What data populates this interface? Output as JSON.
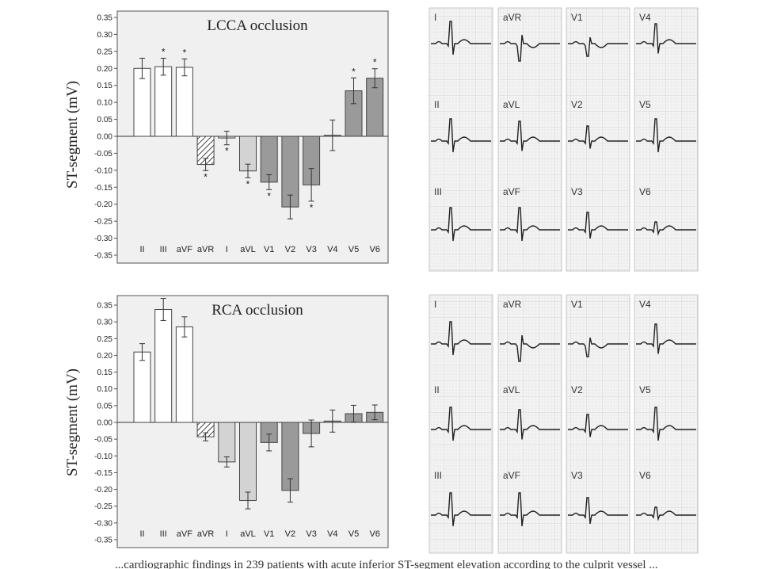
{
  "chart_data": [
    {
      "type": "bar",
      "title": "LCCA occlusion",
      "ylabel": "ST-segment (mV)",
      "xlabel": "",
      "ylim": [
        -0.35,
        0.35
      ],
      "yticks": [
        "0.35",
        "0.30",
        "0.25",
        "0.20",
        "0.15",
        "0.10",
        "0.05",
        "0.00",
        "-0.05",
        "-0.10",
        "-0.15",
        "-0.20",
        "-0.25",
        "-0.30",
        "-0.35"
      ],
      "categories": [
        "II",
        "III",
        "aVF",
        "aVR",
        "I",
        "aVL",
        "V1",
        "V2",
        "V3",
        "V4",
        "V5",
        "V6"
      ],
      "values": [
        0.2,
        0.205,
        0.203,
        -0.083,
        -0.005,
        -0.102,
        -0.135,
        -0.208,
        -0.143,
        0.003,
        0.134,
        0.171
      ],
      "errors": [
        0.03,
        0.025,
        0.025,
        0.018,
        0.02,
        0.02,
        0.022,
        0.035,
        0.048,
        0.045,
        0.038,
        0.028
      ],
      "significant": [
        false,
        true,
        true,
        true,
        true,
        true,
        true,
        false,
        true,
        false,
        true,
        true
      ],
      "styles": [
        "white",
        "white",
        "white",
        "hatched",
        "light",
        "light",
        "dark",
        "dark",
        "dark",
        "dark",
        "dark",
        "dark"
      ],
      "grid": false
    },
    {
      "type": "bar",
      "title": "RCA occlusion",
      "ylabel": "ST-segment (mV)",
      "xlabel": "",
      "ylim": [
        -0.35,
        0.35
      ],
      "yticks": [
        "0.35",
        "0.30",
        "0.25",
        "0.20",
        "0.15",
        "0.10",
        "0.05",
        "0.00",
        "-0.05",
        "-0.10",
        "-0.15",
        "-0.20",
        "-0.25",
        "-0.30",
        "-0.35"
      ],
      "categories": [
        "II",
        "III",
        "aVF",
        "aVR",
        "I",
        "aVL",
        "V1",
        "V2",
        "V3",
        "V4",
        "V5",
        "V6"
      ],
      "values": [
        0.21,
        0.337,
        0.285,
        -0.043,
        -0.118,
        -0.233,
        -0.06,
        -0.203,
        -0.033,
        0.004,
        0.026,
        0.03
      ],
      "errors": [
        0.025,
        0.033,
        0.03,
        0.012,
        0.015,
        0.025,
        0.025,
        0.035,
        0.04,
        0.033,
        0.025,
        0.022
      ],
      "significant": [
        false,
        false,
        false,
        false,
        false,
        false,
        false,
        false,
        false,
        false,
        false,
        false
      ],
      "styles": [
        "white",
        "white",
        "white",
        "hatched",
        "light",
        "light",
        "dark",
        "dark",
        "dark",
        "dark",
        "dark",
        "dark"
      ],
      "grid": false
    }
  ],
  "ecg_panels": [
    {
      "name": "LCCA",
      "leads": [
        [
          "I",
          "aVR",
          "V1",
          "V4"
        ],
        [
          "II",
          "aVL",
          "V2",
          "V5"
        ],
        [
          "III",
          "aVF",
          "V3",
          "V6"
        ]
      ]
    },
    {
      "name": "RCA",
      "leads": [
        [
          "I",
          "aVR",
          "V1",
          "V4"
        ],
        [
          "II",
          "aVL",
          "V2",
          "V5"
        ],
        [
          "III",
          "aVF",
          "V3",
          "V6"
        ]
      ]
    }
  ],
  "caption": "...cardiographic findings in 239 patients with acute inferior ST-segment elevation according to the culprit vessel ..."
}
